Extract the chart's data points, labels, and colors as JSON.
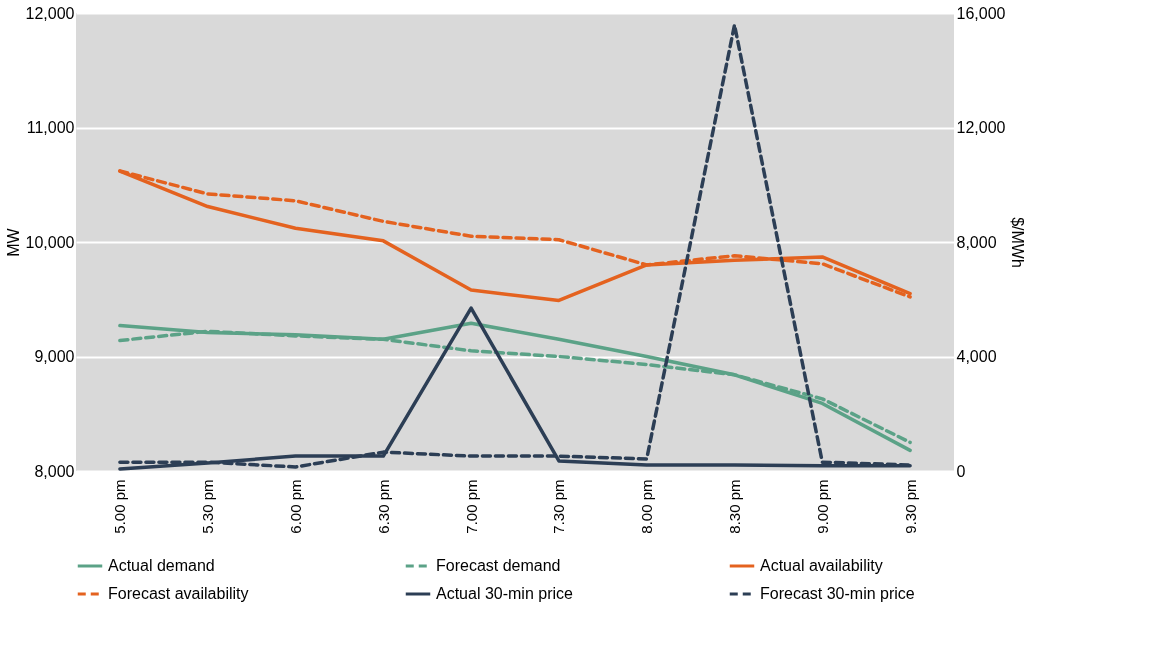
{
  "chart_data": {
    "type": "line",
    "ylabel": "MW",
    "y2label": "$/MWh",
    "categories": [
      "5.00 pm",
      "5.30 pm",
      "6.00 pm",
      "6.30 pm",
      "7.00 pm",
      "7.30 pm",
      "8.00 pm",
      "8.30 pm",
      "9.00 pm",
      "9.30 pm"
    ],
    "series": [
      {
        "name": "Actual demand",
        "color": "#5ba287",
        "line_style": "solid",
        "values": [
          9270,
          9210,
          9190,
          9150,
          9290,
          9150,
          9000,
          8840,
          8590,
          8180
        ]
      },
      {
        "name": "Forecast demand",
        "color": "#5ba287",
        "line_style": "dashed",
        "values": [
          9140,
          9220,
          9180,
          9150,
          9050,
          9000,
          8930,
          8840,
          8630,
          8250
        ]
      },
      {
        "name": "Actual availability",
        "color": "#e4621f",
        "line_style": "solid",
        "values": [
          10620,
          10310,
          10120,
          10010,
          9580,
          9490,
          9800,
          9840,
          9870,
          9550
        ]
      },
      {
        "name": "Forecast availability",
        "color": "#e4621f",
        "line_style": "dashed",
        "values": [
          10620,
          10420,
          10360,
          10180,
          10050,
          10020,
          9800,
          9880,
          9810,
          9520
        ]
      },
      {
        "name": "Actual 30-min price",
        "color": "#2c3e55",
        "line_style": "solid",
        "axis": "y2",
        "values": [
          70,
          280,
          520,
          520,
          5690,
          350,
          210,
          210,
          180,
          180
        ]
      },
      {
        "name": "Forecast 30-min price",
        "color": "#2c3e55",
        "line_style": "dashed",
        "axis": "y2",
        "values": [
          310,
          310,
          140,
          660,
          520,
          520,
          420,
          15580,
          310,
          210
        ]
      }
    ],
    "ylim": [
      8000,
      12000
    ],
    "yticks": [
      {
        "value": 8000,
        "label": "8,000"
      },
      {
        "value": 9000,
        "label": "9,000"
      },
      {
        "value": 10000,
        "label": "10,000"
      },
      {
        "value": 11000,
        "label": "11,000"
      },
      {
        "value": 12000,
        "label": "12,000"
      }
    ],
    "y2lim": [
      0,
      16000
    ],
    "y2ticks": [
      0,
      {
        "value": 4000,
        "label": "4,000"
      },
      {
        "value": 8000,
        "label": "8,000"
      },
      {
        "value": 12000,
        "label": "12,000"
      },
      {
        "value": 16000,
        "label": "16,000"
      }
    ],
    "grid": "y",
    "legend": "bottom",
    "marker": "none"
  }
}
